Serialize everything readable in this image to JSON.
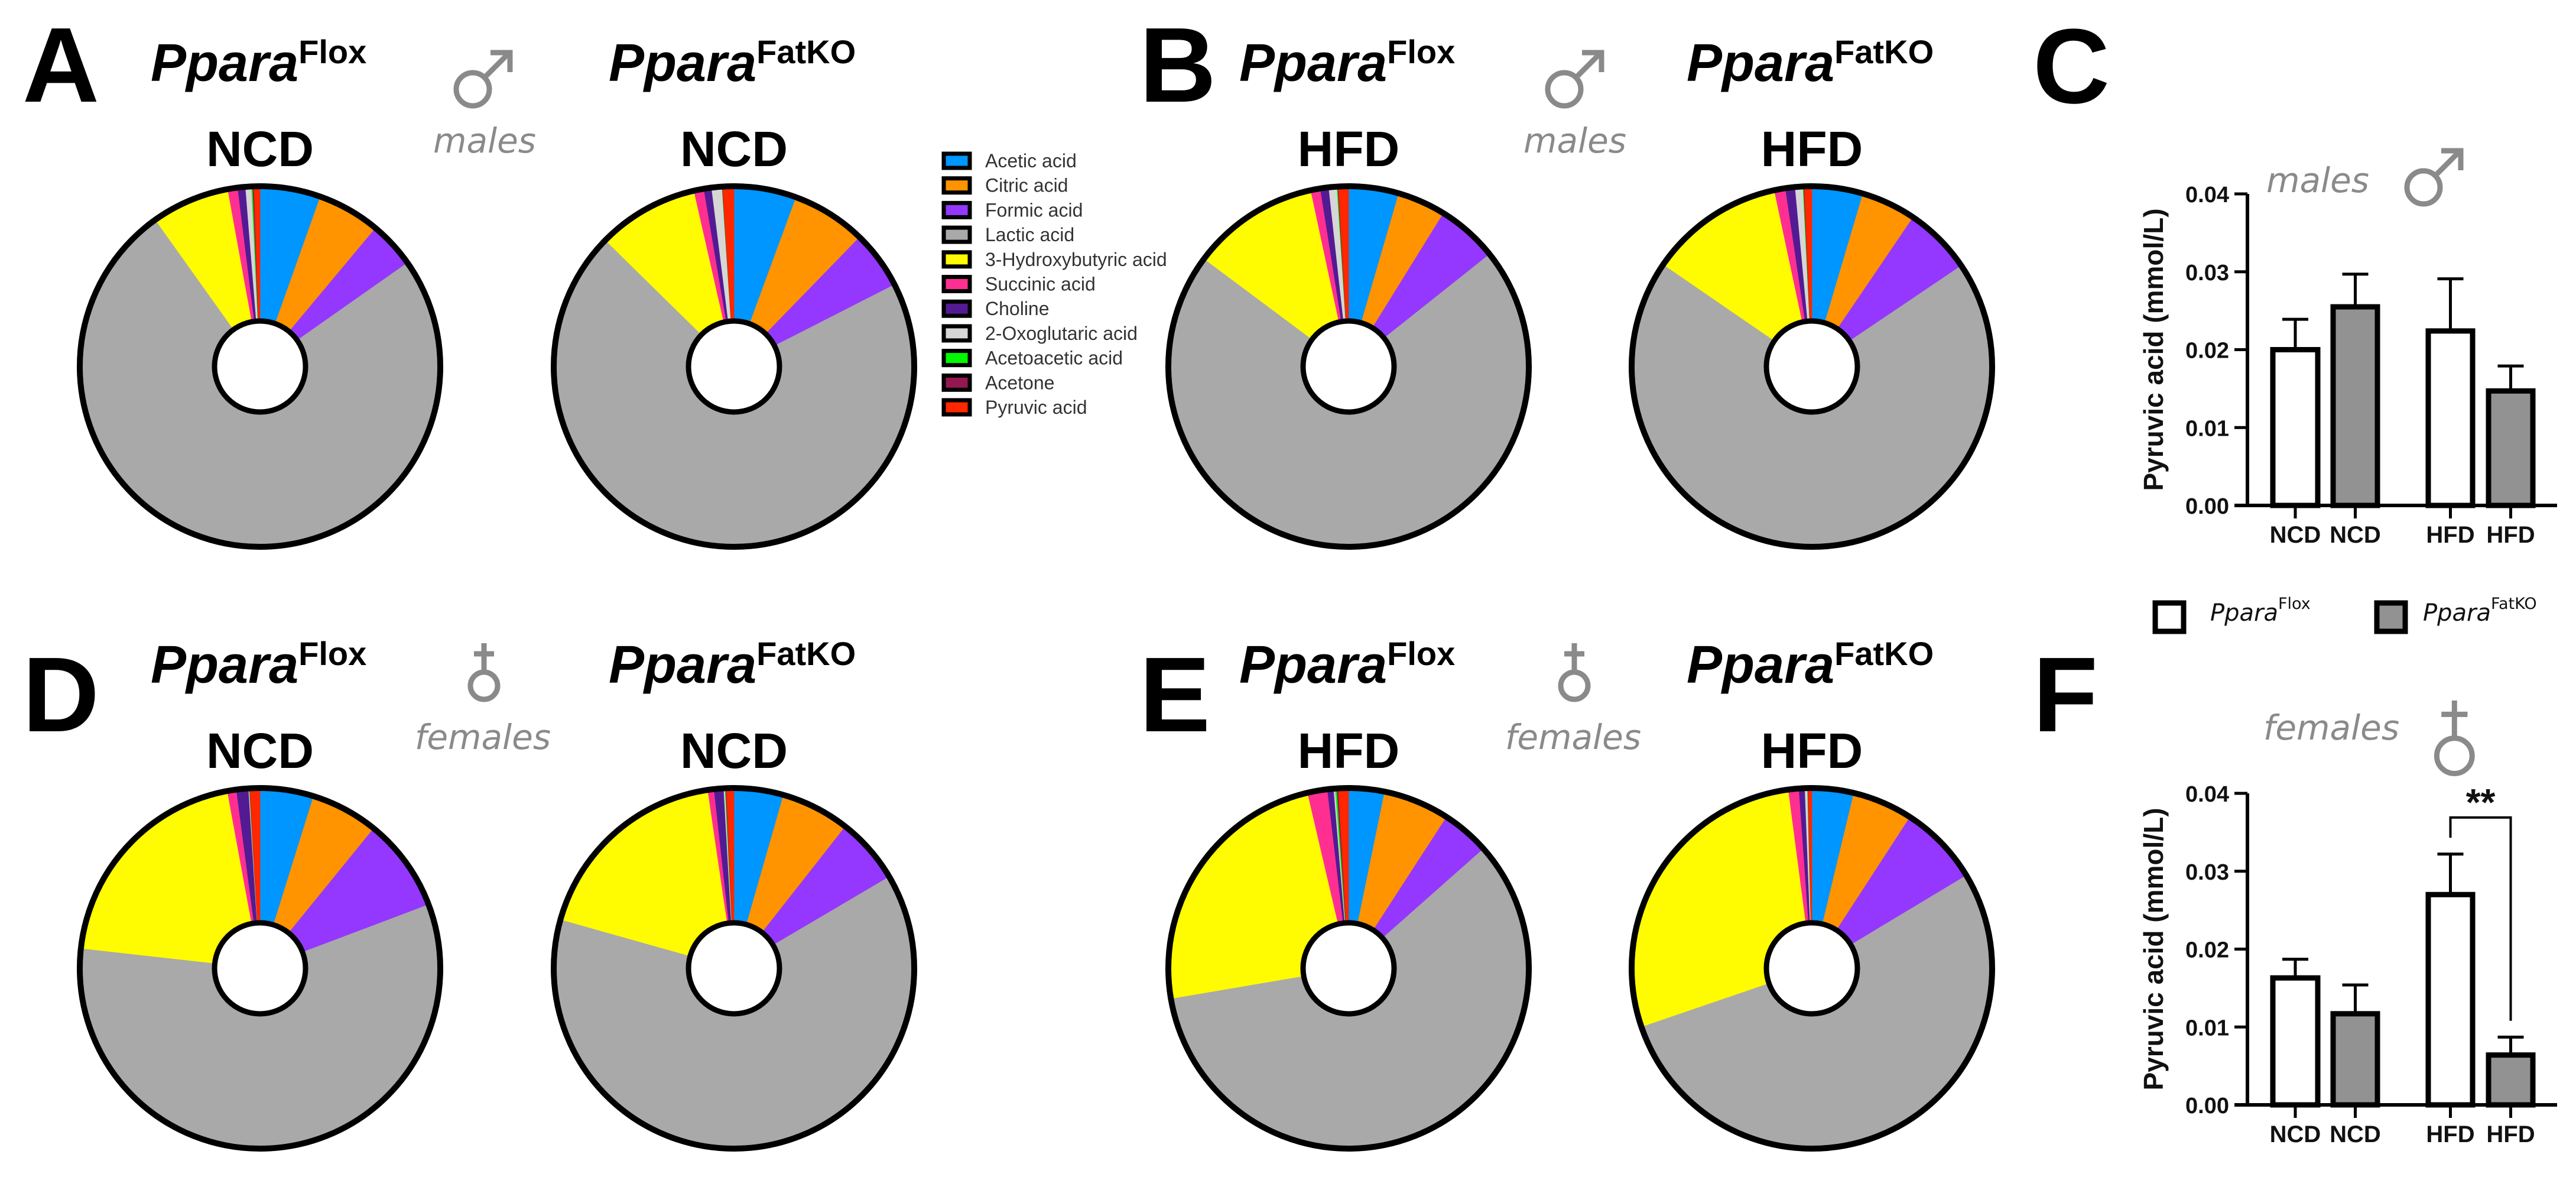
{
  "panels": {
    "A": "A",
    "B": "B",
    "C": "C",
    "D": "D",
    "E": "E",
    "F": "F"
  },
  "sex_labels": {
    "males": "males",
    "females": "females"
  },
  "legend": {
    "items": [
      {
        "label": "Acetic acid",
        "color": "#0096FF"
      },
      {
        "label": "Citric acid",
        "color": "#FF9300"
      },
      {
        "label": "Formic acid",
        "color": "#9437FF"
      },
      {
        "label": "Lactic acid",
        "color": "#A9A9A9"
      },
      {
        "label": "3-Hydroxybutyric acid",
        "color": "#FFFB00"
      },
      {
        "label": "Succinic acid",
        "color": "#FF2F92"
      },
      {
        "label": "Choline",
        "color": "#531B93"
      },
      {
        "label": "2-Oxoglutaric acid",
        "color": "#D6D6D6"
      },
      {
        "label": "Acetoacetic acid",
        "color": "#00F900"
      },
      {
        "label": "Acetone",
        "color": "#941751"
      },
      {
        "label": "Pyruvic acid",
        "color": "#FF2600"
      }
    ]
  },
  "bar_legend": [
    {
      "base": "Ppara",
      "sup": "Flox",
      "fill": "#FFFFFF"
    },
    {
      "base": "Ppara",
      "sup": "FatKO",
      "fill": "#929292"
    }
  ],
  "chart_data": [
    {
      "type": "pie",
      "panel": "A",
      "sex": "males",
      "genotype": "Ppara",
      "genotype_sup": "Flox",
      "diet": "NCD",
      "unit": "percent",
      "values": [
        5.44,
        5.64,
        4.17,
        74.89,
        7.0,
        0.89,
        0.69,
        0.53,
        0.11,
        0.11,
        0.53
      ]
    },
    {
      "type": "pie",
      "panel": "A",
      "sex": "males",
      "genotype": "Ppara",
      "genotype_sup": "FatKO",
      "diet": "NCD",
      "unit": "percent",
      "values": [
        5.61,
        6.67,
        5.22,
        69.86,
        9.08,
        0.89,
        0.69,
        0.92,
        0.03,
        0.03,
        1.0
      ]
    },
    {
      "type": "pie",
      "panel": "B",
      "sex": "males",
      "genotype": "Ppara",
      "genotype_sup": "Flox",
      "diet": "HFD",
      "unit": "percent",
      "values": [
        4.5,
        4.33,
        5.47,
        70.89,
        11.44,
        0.86,
        0.75,
        0.72,
        0.07,
        0.07,
        0.89
      ]
    },
    {
      "type": "pie",
      "panel": "B",
      "sex": "males",
      "genotype": "Ppara",
      "genotype_sup": "FatKO",
      "diet": "HFD",
      "unit": "percent",
      "values": [
        4.58,
        4.92,
        6.06,
        69.03,
        12.08,
        1.0,
        0.86,
        0.69,
        0.06,
        0.06,
        0.67
      ]
    },
    {
      "type": "pie",
      "panel": "D",
      "sex": "females",
      "genotype": "Ppara",
      "genotype_sup": "Flox",
      "diet": "NCD",
      "unit": "percent",
      "values": [
        4.81,
        6.06,
        8.39,
        57.53,
        20.33,
        0.81,
        1.08,
        0.06,
        0.03,
        0.03,
        0.89
      ]
    },
    {
      "type": "pie",
      "panel": "D",
      "sex": "females",
      "genotype": "Ppara",
      "genotype_sup": "FatKO",
      "diet": "NCD",
      "unit": "percent",
      "values": [
        4.44,
        6.17,
        5.92,
        62.86,
        18.31,
        0.56,
        0.86,
        0.11,
        0.06,
        0.06,
        0.67
      ]
    },
    {
      "type": "pie",
      "panel": "E",
      "sex": "females",
      "genotype": "Ppara",
      "genotype_sup": "Flox",
      "diet": "HFD",
      "unit": "percent",
      "values": [
        3.22,
        5.94,
        4.31,
        58.86,
        24.03,
        1.78,
        0.56,
        0.14,
        0.14,
        0.14,
        0.89
      ]
    },
    {
      "type": "pie",
      "panel": "E",
      "sex": "females",
      "genotype": "Ppara",
      "genotype_sup": "FatKO",
      "diet": "HFD",
      "unit": "percent",
      "values": [
        3.75,
        5.42,
        7.22,
        53.36,
        28.17,
        0.94,
        0.53,
        0.22,
        0.03,
        0.03,
        0.33
      ]
    },
    {
      "type": "bar",
      "panel": "C",
      "title": "males",
      "ylabel": "Pyruvic acid (mmol/L)",
      "ylim": [
        0,
        0.04
      ],
      "yticks": [
        "0.00",
        "0.01",
        "0.02",
        "0.03",
        "0.04"
      ],
      "categories": [
        "NCD",
        "NCD",
        "HFD",
        "HFD"
      ],
      "genotype_of_bar": [
        "Flox",
        "FatKO",
        "Flox",
        "FatKO"
      ],
      "values": [
        0.02,
        0.0255,
        0.0224,
        0.0147
      ],
      "error_upper": [
        0.0239,
        0.0297,
        0.0291,
        0.0179
      ],
      "significance": []
    },
    {
      "type": "bar",
      "panel": "F",
      "title": "females",
      "ylabel": "Pyruvic acid (mmol/L)",
      "ylim": [
        0,
        0.04
      ],
      "yticks": [
        "0.00",
        "0.01",
        "0.02",
        "0.03",
        "0.04"
      ],
      "categories": [
        "NCD",
        "NCD",
        "HFD",
        "HFD"
      ],
      "genotype_of_bar": [
        "Flox",
        "FatKO",
        "Flox",
        "FatKO"
      ],
      "values": [
        0.0163,
        0.0117,
        0.027,
        0.0064
      ],
      "error_upper": [
        0.0187,
        0.0154,
        0.0322,
        0.0087
      ],
      "significance": [
        {
          "between": [
            2,
            3
          ],
          "label": "**",
          "bracket_level": 0.0369,
          "left_drop": 0.0343,
          "right_drop": 0.0108
        }
      ]
    }
  ]
}
